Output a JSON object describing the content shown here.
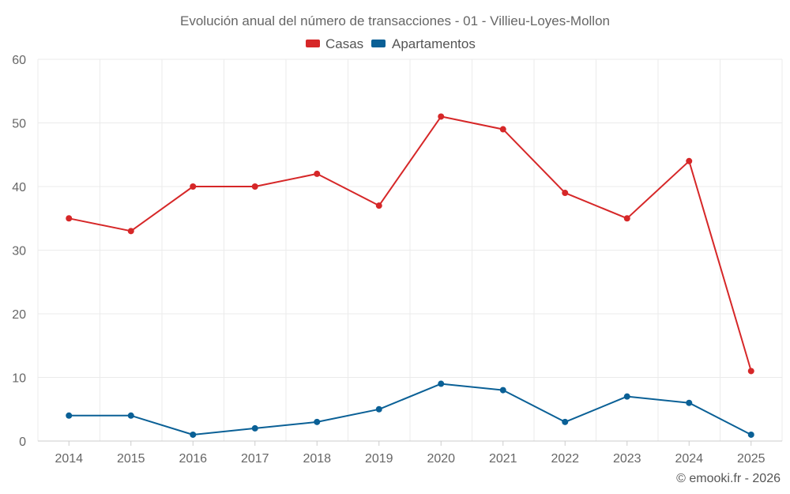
{
  "chart_data": {
    "type": "line",
    "title": "Evolución anual del número de transacciones - 01 - Villieu-Loyes-Mollon",
    "xlabel": "",
    "ylabel": "",
    "categories": [
      "2014",
      "2015",
      "2016",
      "2017",
      "2018",
      "2019",
      "2020",
      "2021",
      "2022",
      "2023",
      "2024",
      "2025"
    ],
    "ylim": [
      0,
      60
    ],
    "yticks": [
      0,
      10,
      20,
      30,
      40,
      50,
      60
    ],
    "grid": true,
    "legend_position": "top-center",
    "series": [
      {
        "name": "Casas",
        "color": "#d62728",
        "values": [
          35,
          33,
          40,
          40,
          42,
          37,
          51,
          49,
          39,
          35,
          44,
          11
        ]
      },
      {
        "name": "Apartamentos",
        "color": "#0a6096",
        "values": [
          4,
          4,
          1,
          2,
          3,
          5,
          9,
          8,
          3,
          7,
          6,
          1
        ]
      }
    ]
  },
  "credit": "© emooki.fr - 2026"
}
